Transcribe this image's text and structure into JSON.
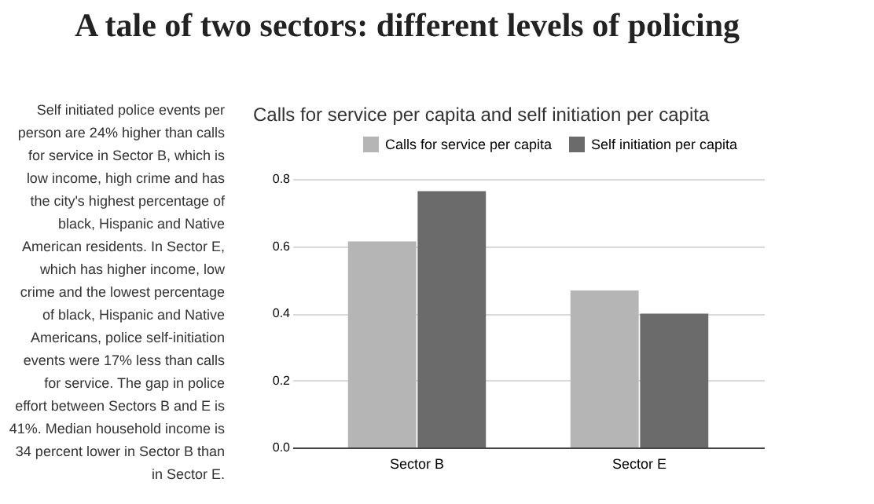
{
  "chart_data": {
    "type": "bar",
    "title": "A tale of two sectors: different levels of policing",
    "subtitle": "Calls for service per capita and self initiation per capita",
    "annotations": [
      "Self initiated police events per person are 24% higher than calls for service in Sector B, which is low income, high crime and has the city's highest percentage of black, Hispanic and Native American residents. In Sector E, which has higher income, low crime and the lowest percentage of black, Hispanic and Native Americans, police self-initiation events were 17% less than calls for service. The gap in police effort between Sectors B and E is 41%. Median household income is 34 percent lower in Sector B than in Sector E."
    ],
    "categories": [
      "Sector B",
      "Sector E"
    ],
    "series": [
      {
        "name": "Calls for service per capita",
        "color": "#b5b5b5",
        "values": [
          0.614,
          0.468
        ]
      },
      {
        "name": "Self initiation per capita",
        "color": "#6b6b6b",
        "values": [
          0.764,
          0.399
        ]
      }
    ],
    "ylim": [
      0,
      0.8
    ],
    "yticks": [
      {
        "value": 0,
        "label": "0.0"
      },
      0.2,
      0.4,
      0.6,
      0.8
    ],
    "grid": "y",
    "legend": "top"
  }
}
